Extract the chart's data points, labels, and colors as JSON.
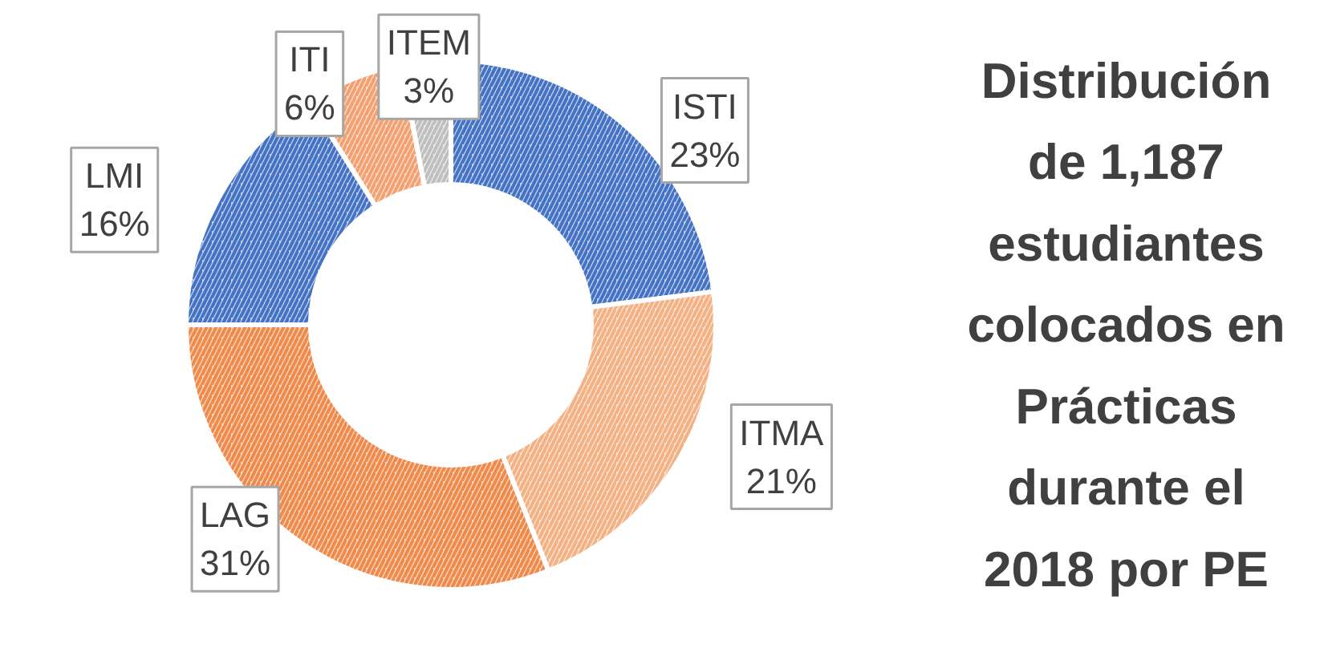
{
  "chart_data": {
    "type": "donut",
    "title": "Distribución de 1,187 estudiantes colocados en Prácticas durante el 2018 por PE",
    "categories": [
      "ISTI",
      "ITMA",
      "LAG",
      "LMI",
      "ITI",
      "ITEM"
    ],
    "values": [
      23,
      21,
      31,
      16,
      6,
      3
    ],
    "colors": [
      "#4472c4",
      "#f4b183",
      "#f08a4b",
      "#4472c4",
      "#f4a070",
      "#bfbfbf"
    ],
    "value_labels": [
      "23%",
      "21%",
      "31%",
      "16%",
      "6%",
      "3%"
    ]
  }
}
